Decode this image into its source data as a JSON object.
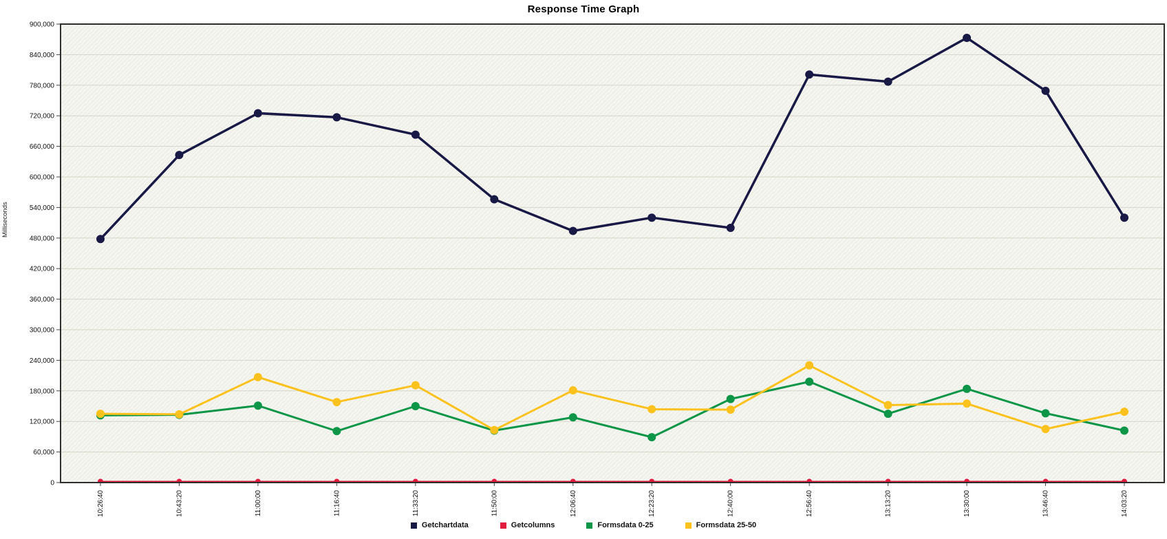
{
  "page": {
    "title": "Response Time Graph"
  },
  "chart_data": {
    "type": "line",
    "title": "Response Time Graph",
    "ylabel": "Milliseconds",
    "xlabel": "",
    "ylim": [
      0,
      900000
    ],
    "ytick_step": 60000,
    "grid": true,
    "legend_position": "bottom",
    "categories": [
      "10:26:40",
      "10:43:20",
      "11:00:00",
      "11:16:40",
      "11:33:20",
      "11:50:00",
      "12:06:40",
      "12:23:20",
      "12:40:00",
      "12:56:40",
      "13:13:20",
      "13:30:00",
      "13:46:40",
      "14:03:20"
    ],
    "series": [
      {
        "name": "Getchartdata",
        "color": "#191946",
        "marker_radius": 6,
        "line_width": 3.5,
        "values": [
          478000,
          643000,
          725000,
          717000,
          683000,
          556000,
          494000,
          520000,
          500000,
          801000,
          787000,
          873000,
          769000,
          520000
        ]
      },
      {
        "name": "Getcolumns",
        "color": "#e11b3d",
        "marker_radius": 4,
        "line_width": 2,
        "values": [
          2000,
          2000,
          2000,
          2000,
          2000,
          2000,
          2000,
          2000,
          2000,
          2000,
          2000,
          2000,
          2000,
          2000
        ]
      },
      {
        "name": "Formsdata 0-25",
        "color": "#0d9648",
        "marker_radius": 6,
        "line_width": 3,
        "values": [
          132000,
          133000,
          151000,
          101000,
          150000,
          102000,
          128000,
          89000,
          164000,
          198000,
          135000,
          184000,
          136000,
          102000
        ]
      },
      {
        "name": "Formsdata 25-50",
        "color": "#fbc21d",
        "marker_radius": 6,
        "line_width": 3,
        "values": [
          135000,
          134000,
          207000,
          158000,
          191000,
          103000,
          181000,
          144000,
          143000,
          230000,
          152000,
          155000,
          105000,
          139000
        ]
      }
    ],
    "colors": {
      "plot_background": "#f5f5f0",
      "plot_border": "#2e2e2e",
      "gridline": "#d5d5c8",
      "hatch": "#c8c8b8",
      "tick_text": "#111111"
    }
  }
}
